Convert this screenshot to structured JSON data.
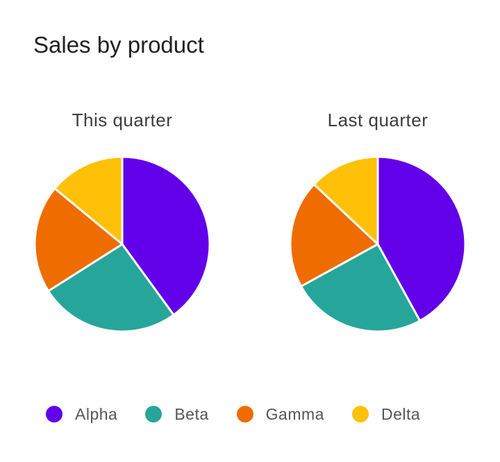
{
  "colors": {
    "Alpha": "#6200ea",
    "Beta": "#26a69a",
    "Gamma": "#ef6c00",
    "Delta": "#ffc107",
    "separator": "#ffffff"
  },
  "chart_data": {
    "type": "pie",
    "title": "Sales by product",
    "categories": [
      "Alpha",
      "Beta",
      "Gamma",
      "Delta"
    ],
    "legend_placement": "bottom",
    "series": [
      {
        "name": "This quarter",
        "values": [
          40,
          26,
          20,
          14
        ]
      },
      {
        "name": "Last quarter",
        "values": [
          42,
          25,
          20,
          13
        ]
      }
    ]
  }
}
